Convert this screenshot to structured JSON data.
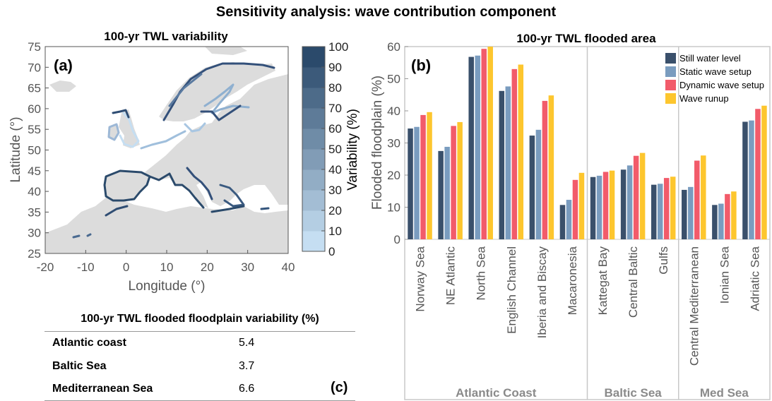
{
  "title": "Sensitivity analysis: wave contribution component",
  "map_panel": {
    "title": "100-yr TWL variability",
    "panel_label": "(a)",
    "xlabel": "Longitude (°)",
    "ylabel": "Latitude (°)",
    "x_ticks": [
      "-20",
      "-10",
      "0",
      "10",
      "20",
      "30",
      "40"
    ],
    "y_ticks": [
      "25",
      "30",
      "35",
      "40",
      "45",
      "50",
      "55",
      "60",
      "65",
      "70",
      "75"
    ],
    "colorbar_label": "Variability (%)",
    "colorbar_ticks": [
      "0",
      "10",
      "20",
      "30",
      "40",
      "50",
      "60",
      "70",
      "80",
      "90",
      "100"
    ],
    "colors": {
      "land": "#dcdcdc",
      "low": "#c5def2",
      "high": "#2b4a6b"
    }
  },
  "table": {
    "title": "100-yr TWL flooded floodplain variability (%)",
    "panel_label": "(c)",
    "rows": [
      {
        "name": "Atlantic coast",
        "value": "5.4"
      },
      {
        "name": "Baltic Sea",
        "value": "3.7"
      },
      {
        "name": "Mediterranean Sea",
        "value": "6.6"
      }
    ]
  },
  "chart_data": {
    "type": "bar",
    "title": "100-yr TWL flooded area",
    "panel_label": "(b)",
    "ylabel": "Flooded floodplain (%)",
    "xlabel": "",
    "ylim": [
      0,
      60
    ],
    "y_ticks": [
      0,
      10,
      20,
      30,
      40,
      50,
      60
    ],
    "grid": false,
    "legend_position": "top-right",
    "categories": [
      "Norway Sea",
      "NE Atlantic",
      "North Sea",
      "English Channel",
      "Iberia and Biscay",
      "Macaronesia",
      "Kattegat Bay",
      "Central Baltic",
      "Gulfs",
      "Central Mediterranean",
      "Ionian Sea",
      "Adriatic Sea"
    ],
    "groups": [
      {
        "label": "Atlantic Coast",
        "count": 6
      },
      {
        "label": "Baltic Sea",
        "count": 3
      },
      {
        "label": "Med Sea",
        "count": 3
      }
    ],
    "series": [
      {
        "name": "Still water level",
        "color": "#3a506b",
        "values": [
          34.5,
          27.5,
          56.8,
          46.2,
          32.3,
          10.7,
          19.4,
          21.7,
          17.0,
          15.4,
          10.7,
          36.6
        ]
      },
      {
        "name": "Static wave setup",
        "color": "#7a9cbf",
        "values": [
          35.0,
          28.8,
          57.2,
          47.6,
          34.1,
          12.3,
          19.8,
          23.0,
          17.3,
          16.3,
          11.1,
          37.0
        ]
      },
      {
        "name": "Dynamic wave setup",
        "color": "#f25b6a",
        "values": [
          38.7,
          35.3,
          59.3,
          53.0,
          43.1,
          18.5,
          21.0,
          26.0,
          19.1,
          24.5,
          14.1,
          40.6
        ]
      },
      {
        "name": "Wave runup",
        "color": "#fdc62e",
        "values": [
          39.6,
          36.5,
          60.0,
          54.4,
          44.8,
          20.7,
          21.4,
          26.9,
          19.5,
          26.1,
          14.9,
          41.6
        ]
      }
    ]
  }
}
